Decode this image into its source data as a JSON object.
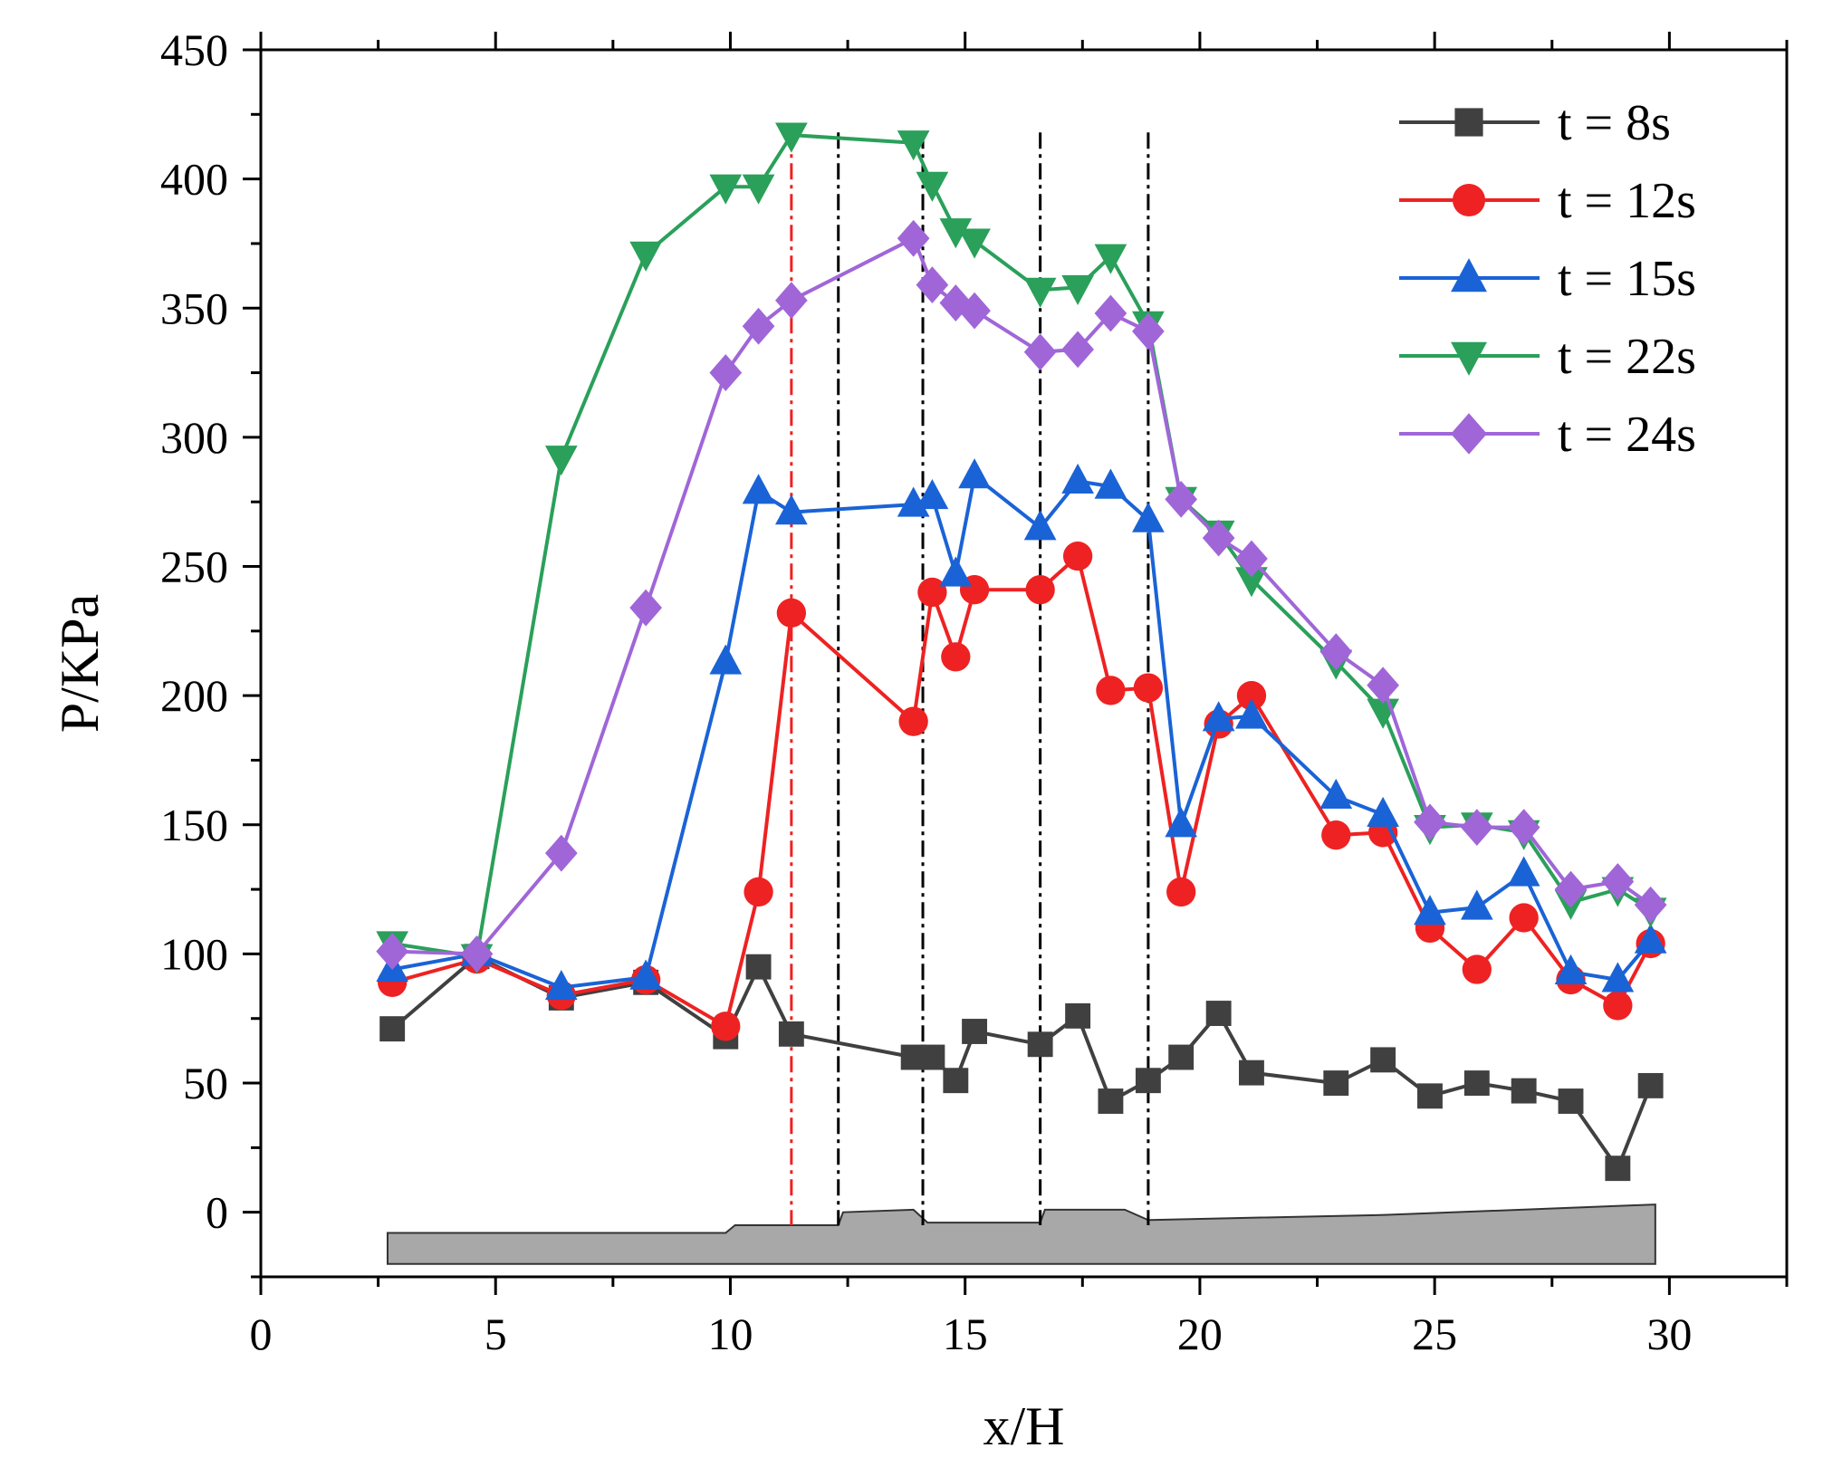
{
  "chart_data": {
    "type": "line",
    "title": "",
    "xlabel": "x/H",
    "ylabel": "P/KPa",
    "xlim": [
      0,
      32.5
    ],
    "ylim": [
      -25,
      450
    ],
    "xticks": [
      0,
      5,
      10,
      15,
      20,
      25,
      30
    ],
    "yticks": [
      0,
      50,
      100,
      150,
      200,
      250,
      300,
      350,
      400,
      450
    ],
    "legend_position": "top-right",
    "colors": {
      "gray": "#404040",
      "red": "#ee2222",
      "blue": "#1a63d6",
      "green": "#2aa05a",
      "purple": "#a066d8",
      "terrain": "#a8a8a8"
    },
    "series": [
      {
        "name": "t = 8s",
        "color": "#404040",
        "marker": "square",
        "x": [
          2.8,
          4.6,
          6.4,
          8.2,
          9.9,
          10.6,
          11.3,
          13.9,
          14.3,
          14.8,
          15.2,
          16.6,
          17.4,
          18.1,
          18.9,
          19.6,
          20.4,
          21.1,
          22.9,
          23.9,
          24.9,
          25.9,
          26.9,
          27.9,
          28.9,
          29.6
        ],
        "values": [
          71,
          99,
          83,
          89,
          68,
          95,
          69,
          60,
          60,
          51,
          70,
          65,
          76,
          43,
          51,
          60,
          77,
          54,
          50,
          59,
          45,
          50,
          47,
          43,
          17,
          49
        ]
      },
      {
        "name": "t = 12s",
        "color": "#ee2222",
        "marker": "circle",
        "x": [
          2.8,
          4.6,
          6.4,
          8.2,
          9.9,
          10.6,
          11.3,
          13.9,
          14.3,
          14.8,
          15.2,
          16.6,
          17.4,
          18.1,
          18.9,
          19.6,
          20.4,
          21.1,
          22.9,
          23.9,
          24.9,
          25.9,
          26.9,
          27.9,
          28.9,
          29.6
        ],
        "values": [
          89,
          98,
          84,
          90,
          72,
          124,
          232,
          190,
          240,
          215,
          241,
          241,
          254,
          202,
          203,
          124,
          189,
          200,
          146,
          147,
          110,
          94,
          114,
          90,
          80,
          104
        ]
      },
      {
        "name": "t = 15s",
        "color": "#1a63d6",
        "marker": "triangle-up",
        "x": [
          2.8,
          4.6,
          6.4,
          8.2,
          9.9,
          10.6,
          11.3,
          13.9,
          14.3,
          14.8,
          15.2,
          16.6,
          17.4,
          18.1,
          18.9,
          19.6,
          20.4,
          21.1,
          22.9,
          23.9,
          24.9,
          25.9,
          26.9,
          27.9,
          28.9,
          29.6
        ],
        "values": [
          94,
          100,
          87,
          91,
          213,
          279,
          271,
          274,
          277,
          247,
          285,
          265,
          283,
          281,
          268,
          150,
          191,
          192,
          161,
          154,
          116,
          118,
          131,
          93,
          90,
          105
        ]
      },
      {
        "name": "t = 22s",
        "color": "#2aa05a",
        "marker": "triangle-down",
        "x": [
          2.8,
          4.6,
          6.4,
          8.2,
          9.9,
          10.6,
          11.3,
          13.9,
          14.3,
          14.8,
          15.2,
          16.6,
          17.4,
          18.1,
          18.9,
          19.6,
          20.4,
          21.1,
          22.9,
          23.9,
          24.9,
          25.9,
          26.9,
          27.9,
          28.9,
          29.6
        ],
        "values": [
          104,
          99,
          292,
          371,
          397,
          397,
          417,
          414,
          398,
          380,
          376,
          357,
          358,
          370,
          344,
          276,
          263,
          245,
          213,
          194,
          149,
          150,
          147,
          120,
          125,
          117
        ]
      },
      {
        "name": "t = 24s",
        "color": "#a066d8",
        "marker": "diamond",
        "x": [
          2.8,
          4.6,
          6.4,
          8.2,
          9.9,
          10.6,
          11.3,
          13.9,
          14.3,
          14.8,
          15.2,
          16.6,
          17.4,
          18.1,
          18.9,
          19.6,
          20.4,
          21.1,
          22.9,
          23.9,
          24.9,
          25.9,
          26.9,
          27.9,
          28.9,
          29.6
        ],
        "values": [
          101,
          100,
          139,
          234,
          325,
          343,
          353,
          377,
          359,
          352,
          349,
          333,
          334,
          348,
          341,
          276,
          261,
          253,
          217,
          204,
          151,
          149,
          149,
          125,
          128,
          119
        ]
      }
    ],
    "vertical_lines": [
      {
        "x": 11.3,
        "color": "#ee2222",
        "style": "dash-dot"
      },
      {
        "x": 12.3,
        "color": "#000000",
        "style": "dash-dot"
      },
      {
        "x": 14.1,
        "color": "#000000",
        "style": "dash-dot"
      },
      {
        "x": 16.6,
        "color": "#000000",
        "style": "dash-dot"
      },
      {
        "x": 18.9,
        "color": "#000000",
        "style": "dash-dot"
      }
    ],
    "terrain_profile": {
      "bottom": -20,
      "x": [
        2.7,
        9.9,
        10.1,
        12.3,
        12.4,
        13.9,
        14.2,
        16.6,
        16.7,
        18.4,
        18.9,
        24,
        29.7
      ],
      "top": [
        -8,
        -8,
        -5,
        -5,
        0,
        1,
        -4,
        -4,
        1,
        1,
        -3,
        -1,
        3
      ]
    }
  }
}
